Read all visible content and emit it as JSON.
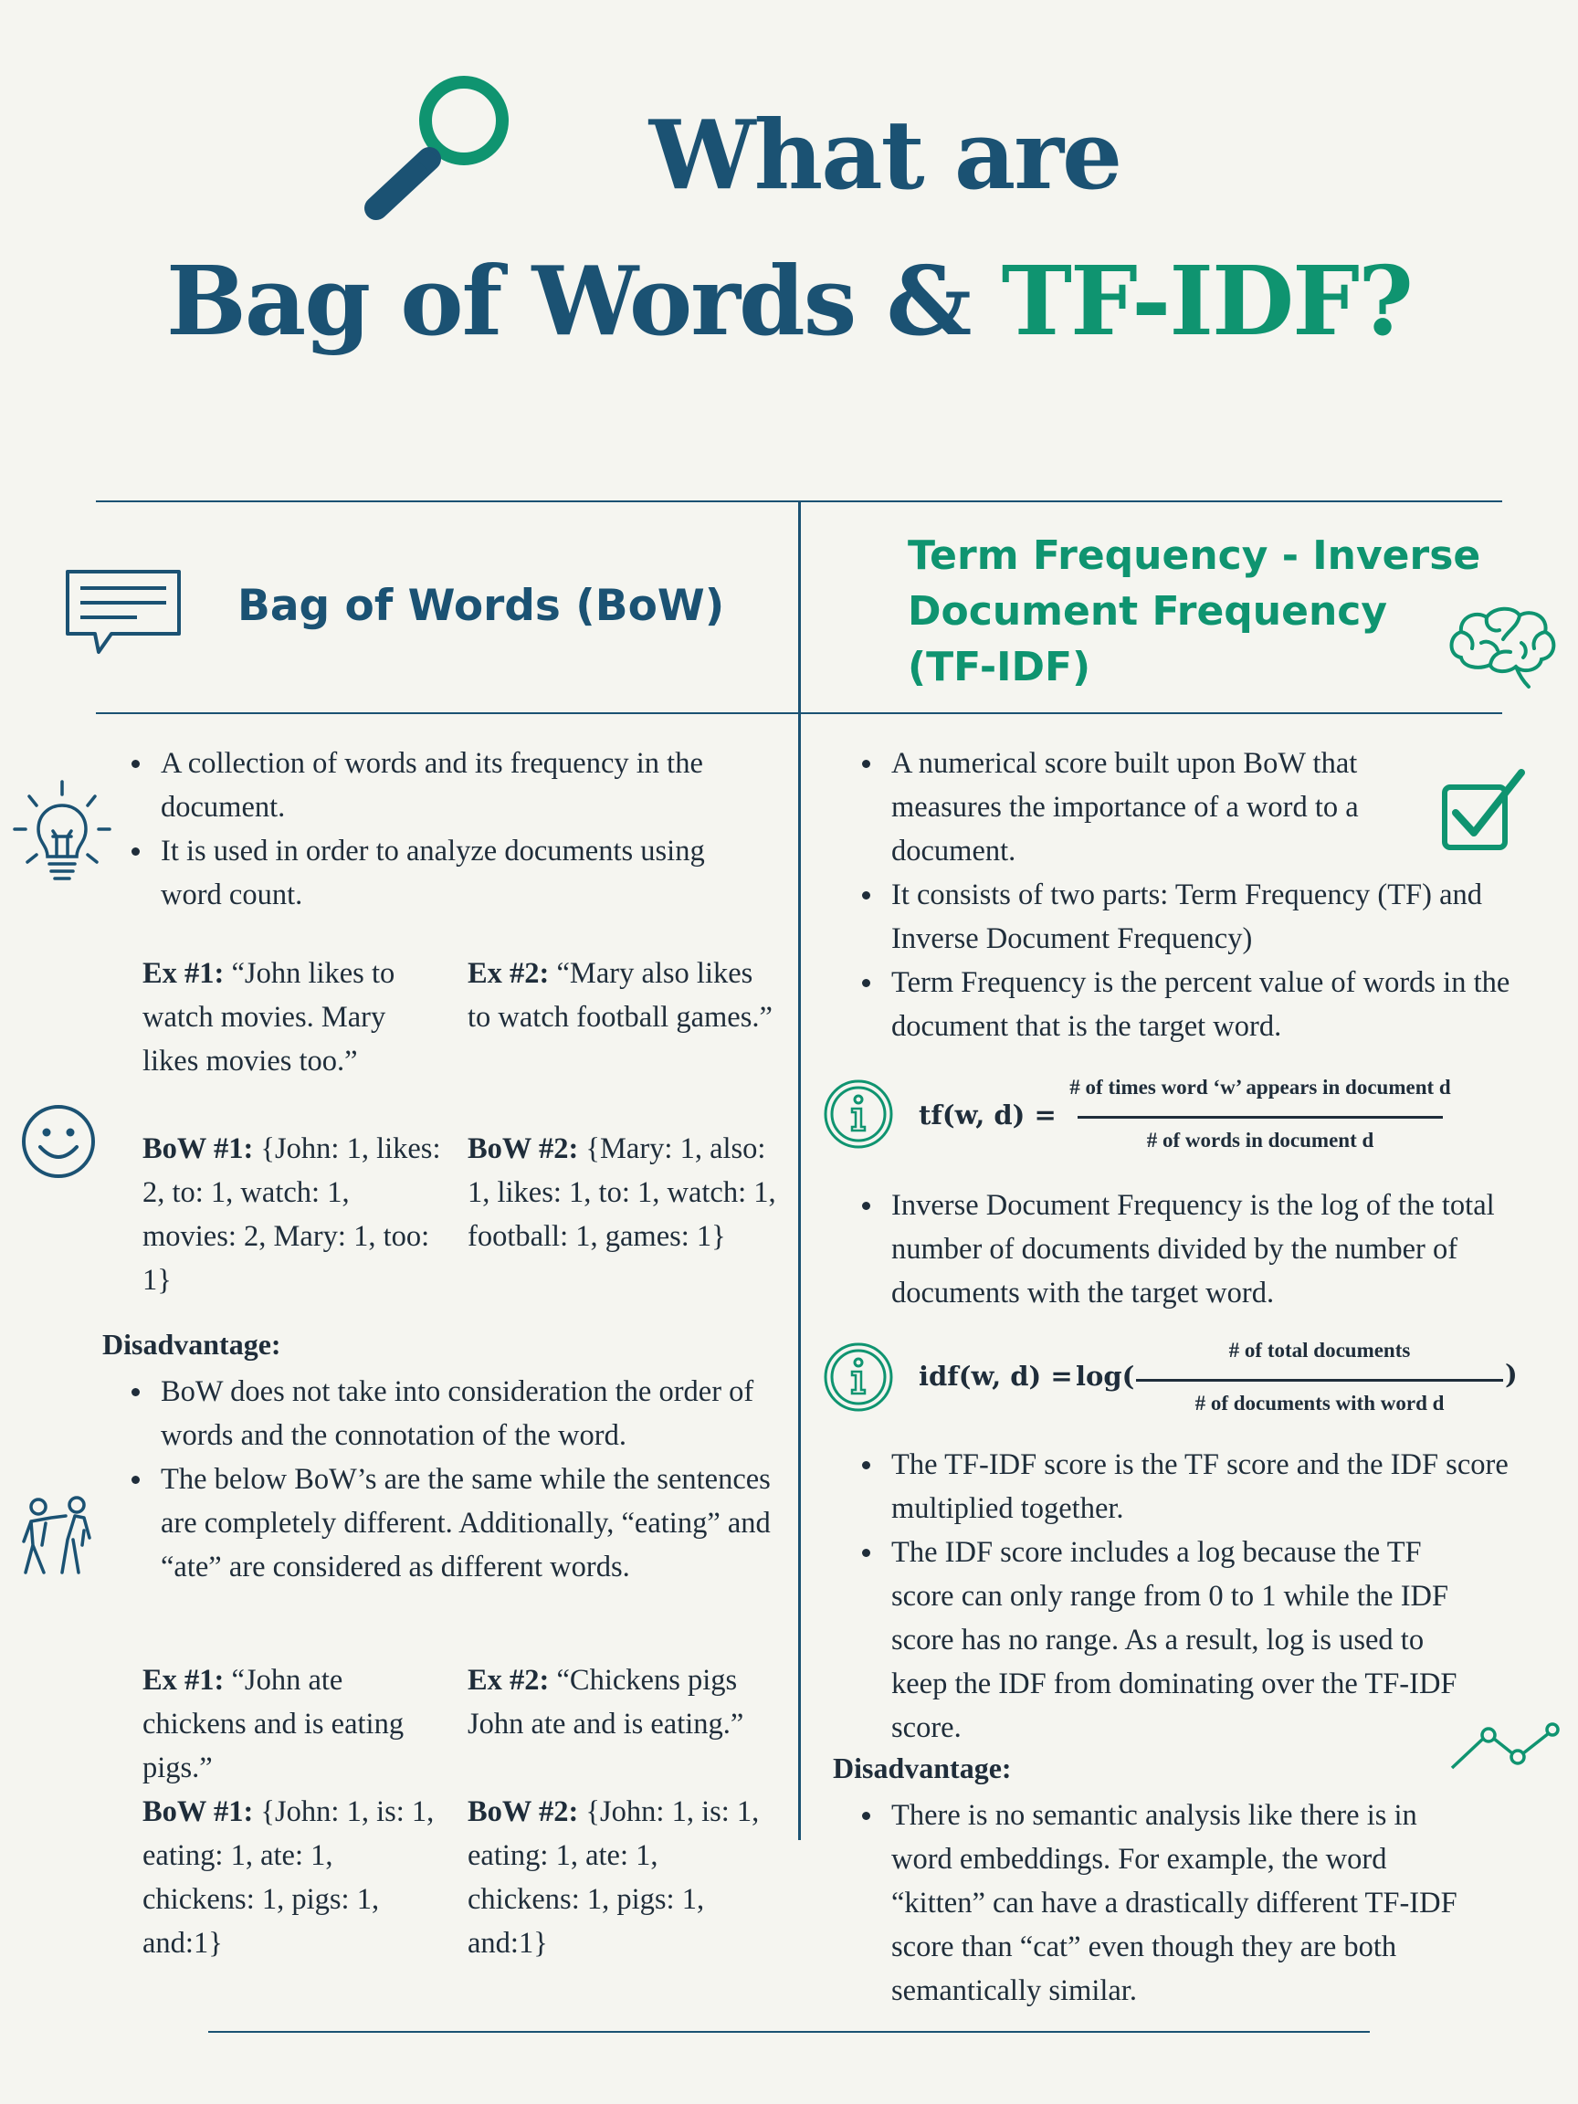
{
  "title": {
    "line1": "What are",
    "line2_main": "Bag of Words & ",
    "line2_accent": "TF-IDF?"
  },
  "colors": {
    "navy": "#1b5273",
    "green": "#0f9470",
    "background": "#f5f5f0",
    "text": "#1f2d3a"
  },
  "icons": [
    "magnifier-icon",
    "chat-bubble-icon",
    "brain-icon",
    "lightbulb-icon",
    "checkbox-icon",
    "smiley-icon",
    "info-icon",
    "people-icon",
    "trend-line-icon"
  ],
  "bow": {
    "heading": "Bag of Words (BoW)",
    "bullets": [
      "A collection of words and its frequency in the document.",
      "It is used in order to analyze documents using word count."
    ],
    "ex1_label": "Ex #1:",
    "ex1_text": " “John likes to watch movies. Mary likes movies too.”",
    "ex2_label": "Ex #2:",
    "ex2_text": " “Mary also likes to watch football games.”",
    "bow1_label": "BoW #1:",
    "bow1_text": " {John: 1, likes: 2, to: 1, watch: 1, movies: 2, Mary: 1, too: 1}",
    "bow2_label": "BoW #2:",
    "bow2_text": " {Mary: 1, also: 1, likes: 1, to: 1, watch: 1, football: 1, games: 1}",
    "disadvantage_label": "Disadvantage:",
    "disadvantage_bullets": [
      "BoW does not take into consideration the order of words and the connotation of the word.",
      "The below BoW’s are the same while the sentences are completely different. Additionally, “eating” and “ate” are considered as different words."
    ],
    "ex3_label": "Ex #1:",
    "ex3_text": " “John ate chickens and is eating pigs.”",
    "ex4_label": "Ex #2:",
    "ex4_text": " “Chickens pigs John ate and is eating.”",
    "bow3_label": "BoW #1:",
    "bow3_text": " {John: 1, is: 1, eating: 1, ate: 1, chickens: 1, pigs: 1, and:1}",
    "bow4_label": "BoW #2:",
    "bow4_text": " {John: 1, is: 1, eating: 1, ate: 1, chickens: 1, pigs: 1, and:1}"
  },
  "tfidf": {
    "heading_line1": "Term Frequency - Inverse",
    "heading_line2": "Document Frequency",
    "heading_line3": "(TF-IDF)",
    "bullets": [
      "A numerical score built upon BoW that measures the importance of a word to a document.",
      "It consists of two parts: Term Frequency (TF) and Inverse Document Frequency)",
      "Term Frequency is the percent value of words in the document that is the target word."
    ],
    "tf_formula": {
      "lhs": "tf(w, d) =",
      "numerator": "# of times word ‘w’ appears in document d",
      "denominator": "# of words in document d"
    },
    "idf_bullet": "Inverse Document Frequency is the log of the total number of documents divided by the number of documents with the target word.",
    "idf_formula": {
      "lhs": "idf(w, d) =",
      "log_open": "log(",
      "numerator": "# of total documents",
      "denominator": "# of documents with word d",
      "close": ")"
    },
    "bullets2": [
      "The TF-IDF score is the TF score and the IDF score multiplied together.",
      "The IDF score includes a log because the TF score can only range from 0 to 1 while the IDF score has no range. As a result, log is used to keep the IDF from dominating over the TF-IDF score."
    ],
    "disadvantage_label": "Disadvantage:",
    "disadvantage_bullets": [
      "There is no semantic analysis like there is in word embeddings. For example, the word “kitten” can have a drastically different TF-IDF score than “cat” even though they are both semantically similar."
    ]
  }
}
